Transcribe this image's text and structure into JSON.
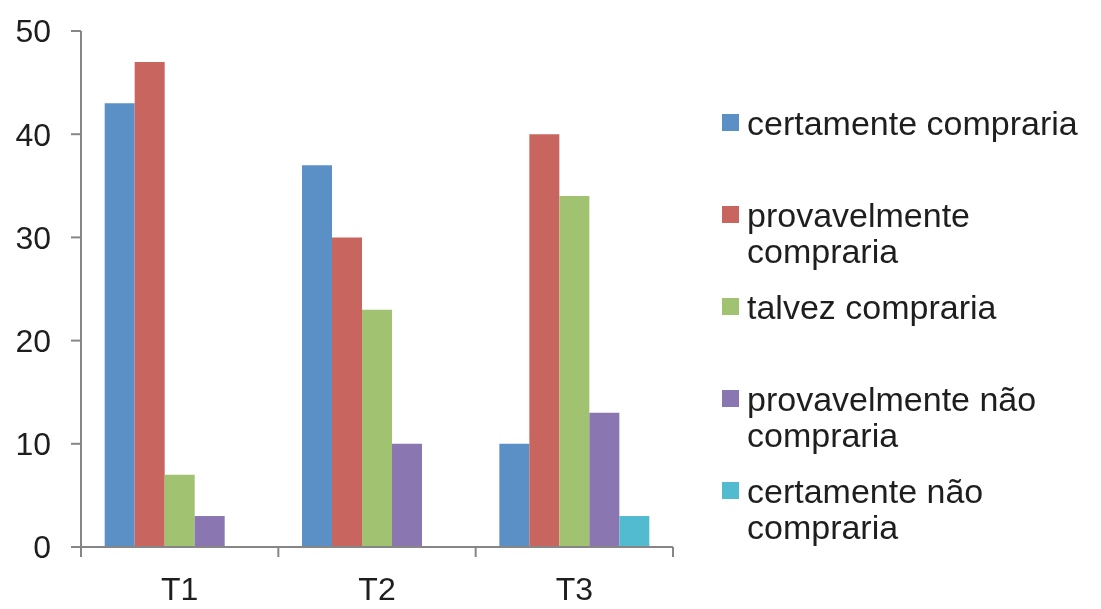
{
  "chart_data": {
    "type": "bar",
    "categories": [
      "T1",
      "T2",
      "T3"
    ],
    "series": [
      {
        "name": "certamente compraria",
        "color": "#5b90c6",
        "values": [
          43,
          37,
          10
        ]
      },
      {
        "name": "provavelmente compraria",
        "color": "#c9655f",
        "values": [
          47,
          30,
          40
        ]
      },
      {
        "name": "talvez compraria",
        "color": "#a0c271",
        "values": [
          7,
          23,
          34
        ]
      },
      {
        "name": "provavelmente não compraria",
        "color": "#8a76b0",
        "values": [
          3,
          10,
          13
        ]
      },
      {
        "name": "certamente não compraria",
        "color": "#52bbcf",
        "values": [
          0,
          0,
          3
        ]
      }
    ],
    "ylim": [
      0,
      50
    ],
    "yticks": [
      0,
      10,
      20,
      30,
      40,
      50
    ],
    "legend": "right"
  }
}
